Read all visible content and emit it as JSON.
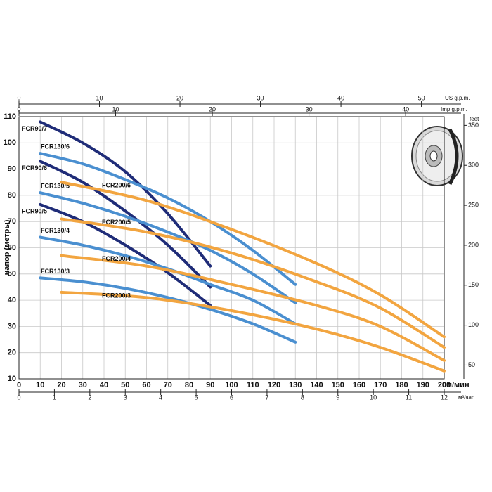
{
  "chart_data": {
    "type": "line",
    "y_label": "напор (метры)",
    "x_label": "л/мин",
    "xlim": [
      0,
      200
    ],
    "xticks": [
      0,
      10,
      20,
      30,
      40,
      50,
      60,
      70,
      80,
      90,
      100,
      110,
      120,
      130,
      140,
      150,
      160,
      170,
      180,
      190,
      200
    ],
    "ylim": [
      10,
      110
    ],
    "yticks": [
      10,
      20,
      30,
      40,
      50,
      60,
      70,
      80,
      90,
      100,
      110
    ],
    "grid": true,
    "series": [
      {
        "name": "FCR90/7",
        "color": "#1f2c78",
        "x": [
          10,
          30,
          50,
          70,
          90
        ],
        "values": [
          108,
          100,
          89,
          73,
          53
        ]
      },
      {
        "name": "FCR90/6",
        "color": "#1f2c78",
        "x": [
          10,
          30,
          50,
          70,
          90
        ],
        "values": [
          93,
          85,
          74,
          61,
          45
        ]
      },
      {
        "name": "FCR90/5",
        "color": "#1f2c78",
        "x": [
          10,
          30,
          50,
          70,
          90
        ],
        "values": [
          76.5,
          70,
          61,
          50.5,
          38
        ]
      },
      {
        "name": "FCR130/6",
        "color": "#4a8fd0",
        "x": [
          10,
          30,
          50,
          70,
          90,
          110,
          130
        ],
        "values": [
          96,
          92,
          86,
          79,
          70,
          59,
          46
        ]
      },
      {
        "name": "FCR130/5",
        "color": "#4a8fd0",
        "x": [
          10,
          30,
          50,
          70,
          90,
          110,
          130
        ],
        "values": [
          81,
          77,
          72,
          66,
          59,
          50,
          39
        ]
      },
      {
        "name": "FCR130/4",
        "color": "#4a8fd0",
        "x": [
          10,
          30,
          50,
          70,
          90,
          110,
          130
        ],
        "values": [
          64,
          61,
          57,
          52,
          46,
          40,
          31
        ]
      },
      {
        "name": "FCR130/3",
        "color": "#4a8fd0",
        "x": [
          10,
          30,
          50,
          70,
          90,
          110,
          130
        ],
        "values": [
          48.5,
          47,
          44.5,
          41,
          36.5,
          31,
          24
        ]
      },
      {
        "name": "FCR200/6",
        "color": "#f2a540",
        "x": [
          20,
          60,
          100,
          140,
          170,
          200
        ],
        "values": [
          85,
          78,
          67,
          54,
          42,
          26
        ]
      },
      {
        "name": "FCR200/5",
        "color": "#f2a540",
        "x": [
          20,
          60,
          100,
          140,
          170,
          200
        ],
        "values": [
          71,
          66,
          58,
          47,
          37,
          22
        ]
      },
      {
        "name": "FCR200/4",
        "color": "#f2a540",
        "x": [
          20,
          60,
          100,
          140,
          170,
          200
        ],
        "values": [
          57,
          53,
          46,
          38,
          30,
          17
        ]
      },
      {
        "name": "FCR200/3",
        "color": "#f2a540",
        "x": [
          20,
          60,
          100,
          140,
          170,
          200
        ],
        "values": [
          43,
          41,
          36,
          29,
          22,
          13
        ]
      }
    ],
    "secondary_axes": [
      {
        "label": "US g.p.m.",
        "position": "top",
        "lim": [
          0,
          52.83
        ],
        "ticks": [
          0,
          10,
          20,
          30,
          40,
          50
        ]
      },
      {
        "label": "Imp g.p.m.",
        "position": "top2",
        "lim": [
          0,
          43.99
        ],
        "ticks": [
          0,
          10,
          20,
          30,
          40
        ]
      },
      {
        "label": "м³/час",
        "position": "bottom2",
        "lim": [
          0,
          12
        ],
        "ticks": [
          0,
          1,
          2,
          3,
          4,
          5,
          6,
          7,
          8,
          9,
          10,
          11,
          12
        ]
      },
      {
        "label": "feet",
        "position": "right",
        "lim": [
          32.81,
          360.89
        ],
        "ticks": [
          50,
          100,
          150,
          200,
          250,
          300,
          350
        ]
      }
    ]
  }
}
